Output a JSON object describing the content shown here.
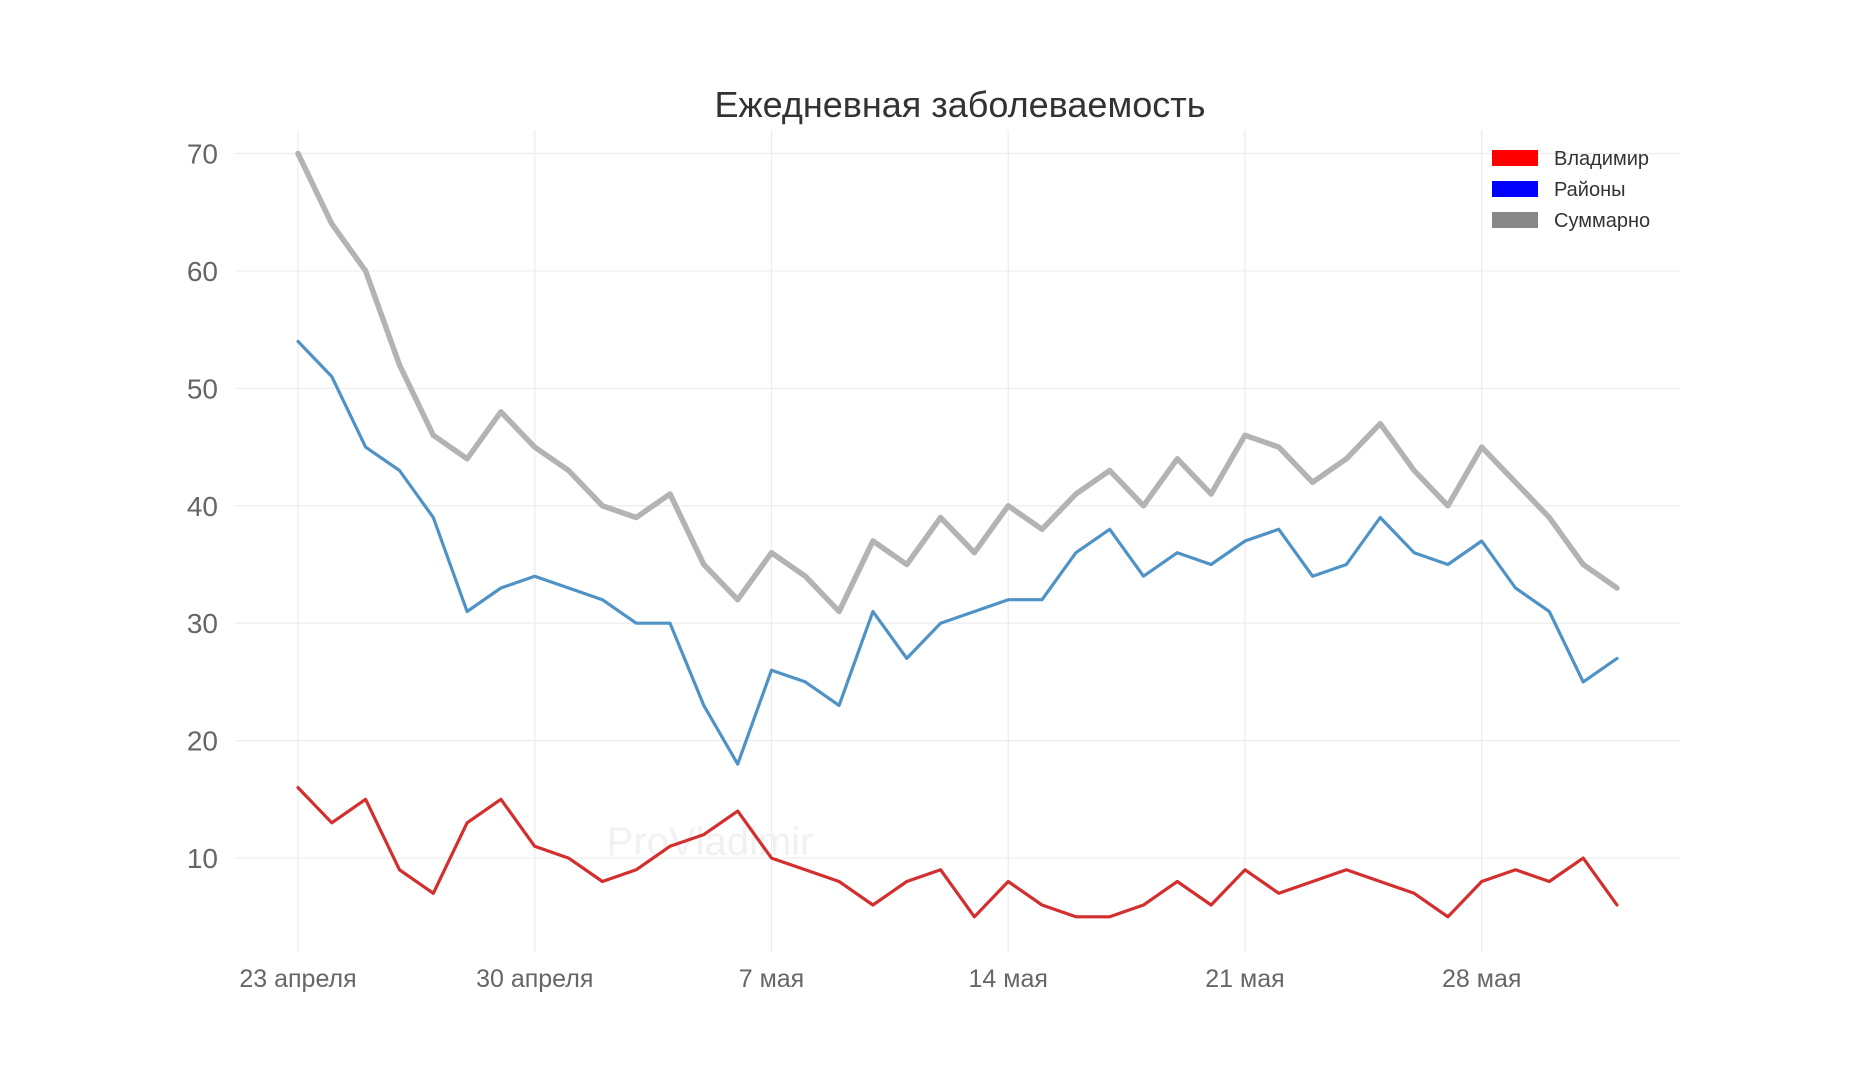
{
  "chart_data": {
    "type": "line",
    "title": "Ежедневная заболеваемость",
    "xlabel": "",
    "ylabel": "",
    "ylim": [
      2,
      72
    ],
    "yticks": [
      10,
      20,
      30,
      40,
      50,
      60,
      70
    ],
    "x_tick_labels": [
      {
        "day": 0,
        "label": "23 апреля"
      },
      {
        "day": 7,
        "label": "30 апреля"
      },
      {
        "day": 14,
        "label": "7 мая"
      },
      {
        "day": 21,
        "label": "14 мая"
      },
      {
        "day": 28,
        "label": "21 мая"
      },
      {
        "day": 35,
        "label": "28 мая"
      }
    ],
    "x": [
      0,
      1,
      2,
      3,
      4,
      5,
      6,
      7,
      8,
      9,
      10,
      11,
      12,
      13,
      14,
      15,
      16,
      17,
      18,
      19,
      20,
      21,
      22,
      23,
      24,
      25,
      26,
      27,
      28,
      29,
      30,
      31,
      32,
      33,
      34,
      35,
      36,
      37,
      38,
      39
    ],
    "series": [
      {
        "name": "Суммарно",
        "line_color": "#b3b3b3",
        "legend_color": "#878787",
        "values": [
          70,
          64,
          60,
          52,
          46,
          44,
          48,
          45,
          43,
          40,
          39,
          41,
          35,
          32,
          36,
          34,
          31,
          37,
          35,
          39,
          36,
          40,
          38,
          41,
          43,
          40,
          44,
          41,
          46,
          45,
          42,
          44,
          47,
          43,
          40,
          45,
          42,
          39,
          35,
          33
        ]
      },
      {
        "name": "Районы",
        "line_color": "#4f93c6",
        "legend_color": "#0000ff",
        "values": [
          54,
          51,
          45,
          43,
          39,
          31,
          33,
          34,
          33,
          32,
          30,
          30,
          23,
          18,
          26,
          25,
          23,
          31,
          27,
          30,
          31,
          32,
          32,
          36,
          38,
          34,
          36,
          35,
          37,
          38,
          34,
          35,
          39,
          36,
          35,
          37,
          33,
          31,
          25,
          27
        ]
      },
      {
        "name": "Владимир",
        "line_color": "#d32f2f",
        "legend_color": "#ff0000",
        "values": [
          16,
          13,
          15,
          9,
          7,
          13,
          15,
          11,
          10,
          8,
          9,
          11,
          12,
          14,
          10,
          9,
          8,
          6,
          8,
          9,
          5,
          8,
          6,
          5,
          5,
          6,
          8,
          6,
          9,
          7,
          8,
          9,
          8,
          7,
          5,
          8,
          9,
          8,
          10,
          6
        ]
      }
    ],
    "legend_order": [
      "Владимир",
      "Районы",
      "Суммарно"
    ],
    "legend_position": "top-right",
    "grid": true,
    "watermark": "ProVladimir"
  }
}
